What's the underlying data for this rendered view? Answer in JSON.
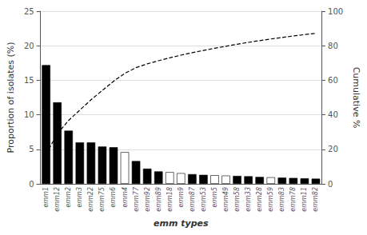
{
  "chart_data": {
    "type": "bar",
    "xlabel": "emm types",
    "ylabel": "Proportion of isolates (%)",
    "y2label": "Cumulative %",
    "categories": [
      "emm1",
      "emm12",
      "emm2",
      "emm3",
      "emm22",
      "emm75",
      "emm6",
      "emm4",
      "emm77",
      "emm92",
      "emm89",
      "emm18",
      "emm9",
      "emm87",
      "emm53",
      "emm5",
      "emm49",
      "emm58",
      "emm33",
      "emm28",
      "emm59",
      "emm83",
      "emm78",
      "emm11",
      "emm82"
    ],
    "series": [
      {
        "type": "bar",
        "values": [
          17.2,
          11.8,
          7.7,
          6.0,
          6.0,
          5.4,
          5.3,
          4.6,
          3.3,
          2.2,
          1.8,
          1.7,
          1.55,
          1.4,
          1.3,
          1.25,
          1.2,
          1.15,
          1.1,
          1.0,
          0.95,
          0.9,
          0.85,
          0.8,
          0.75
        ],
        "colors": [
          "black",
          "black",
          "black",
          "black",
          "black",
          "black",
          "black",
          "white",
          "black",
          "black",
          "black",
          "white",
          "white",
          "black",
          "black",
          "white",
          "white",
          "black",
          "black",
          "black",
          "white",
          "black",
          "black",
          "black",
          "black"
        ]
      },
      {
        "type": "line",
        "axis": "y2",
        "color": "black",
        "line_style": "dashed",
        "values": [
          17.2,
          29.0,
          36.7,
          42.7,
          48.7,
          54.1,
          59.4,
          64.0,
          67.3,
          69.5,
          71.3,
          73.0,
          74.55,
          75.95,
          77.25,
          78.5,
          79.7,
          80.85,
          81.95,
          82.95,
          83.9,
          84.8,
          85.65,
          86.45,
          87.2
        ]
      }
    ],
    "ylim": [
      0,
      25
    ],
    "yticks": [
      0,
      5,
      10,
      15,
      20,
      25
    ],
    "y2lim": [
      0,
      100
    ],
    "y2ticks": [
      0,
      20,
      40,
      60,
      80,
      100
    ],
    "grid": true
  }
}
